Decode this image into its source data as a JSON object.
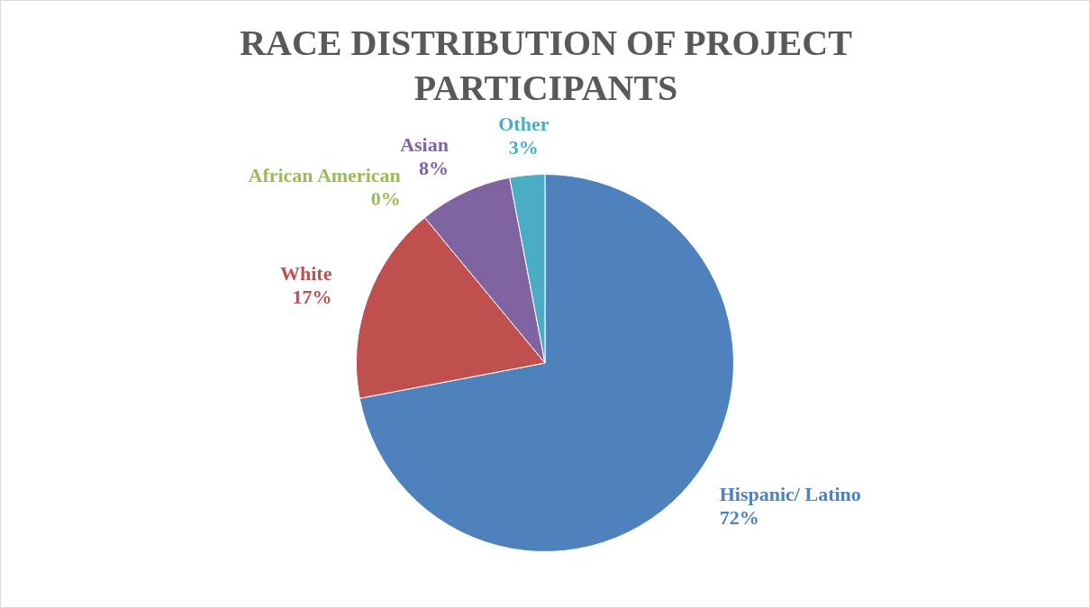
{
  "chart_data": {
    "type": "pie",
    "title": "RACE DISTRIBUTION OF PROJECT PARTICIPANTS",
    "categories": [
      "Hispanic/ Latino",
      "White",
      "African American",
      "Asian",
      "Other"
    ],
    "values": [
      72,
      17,
      0,
      8,
      3
    ],
    "colors": [
      "#4f81bd",
      "#c0504d",
      "#9bbb59",
      "#8064a2",
      "#4bacc6"
    ],
    "value_labels": [
      "72%",
      "17%",
      "0%",
      "8%",
      "3%"
    ],
    "legend": false
  }
}
